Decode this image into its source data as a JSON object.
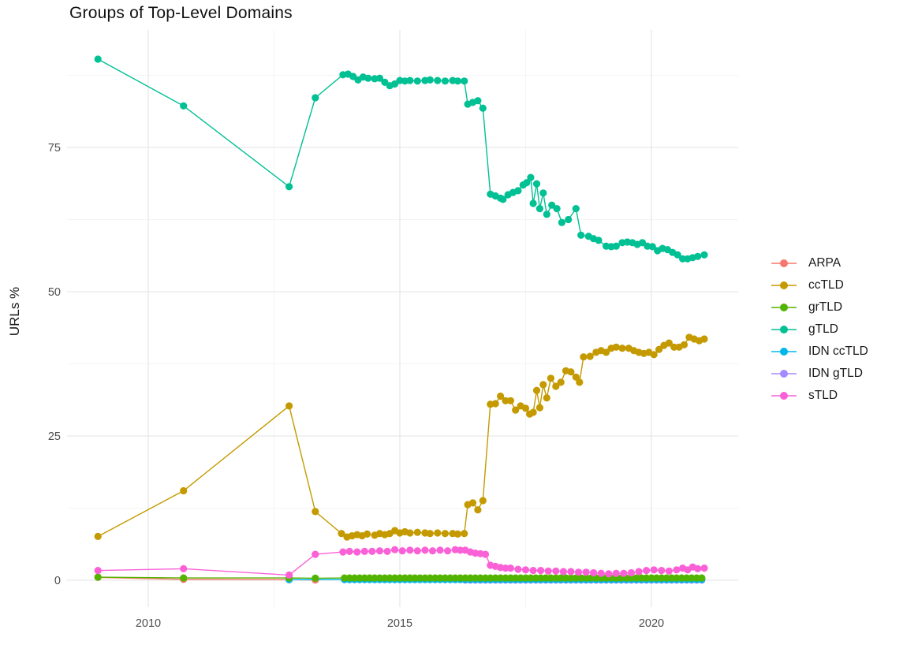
{
  "page": {
    "title": "Groups of Top-Level Domains"
  },
  "axes": {
    "y_label": "URLs %",
    "y_ticks": [
      {
        "label": "0",
        "value": 0
      },
      {
        "label": "25",
        "value": 25
      },
      {
        "label": "50",
        "value": 50
      },
      {
        "label": "75",
        "value": 75
      }
    ],
    "x_ticks": [
      {
        "label": "2010",
        "value": 2010
      },
      {
        "label": "2015",
        "value": 2015
      },
      {
        "label": "2020",
        "value": 2020
      }
    ]
  },
  "legend": {
    "order": [
      "ARPA",
      "ccTLD",
      "grTLD",
      "gTLD",
      "IDN ccTLD",
      "IDN gTLD",
      "sTLD"
    ]
  },
  "colors": {
    "grid_major": "#e3e3e3",
    "grid_minor": "#f1f1f1",
    "tick_text": "#4d4d4d",
    "title_text": "#111111"
  },
  "chart_data": {
    "type": "line",
    "title": "Groups of Top-Level Domains",
    "xlabel": "",
    "ylabel": "URLs %",
    "xlim": [
      2008.4,
      2021.7
    ],
    "ylim": [
      -4.5,
      95
    ],
    "x_major": [
      2010,
      2015,
      2020
    ],
    "x_minor": [
      2012.5,
      2017.5
    ],
    "y_major": [
      0,
      25,
      50,
      75
    ],
    "y_minor": [
      12.5,
      37.5,
      62.5,
      87.5
    ],
    "grid": true,
    "legend_position": "right",
    "marker_radius": 4.6,
    "draw_order": [
      "ARPA",
      "IDN gTLD",
      "IDN ccTLD",
      "ccTLD",
      "gTLD",
      "grTLD",
      "sTLD"
    ],
    "series": [
      {
        "name": "ARPA",
        "color": "#F8766D",
        "points": [
          [
            2009,
            0.5
          ],
          [
            2010.7,
            0.15
          ],
          [
            2012.8,
            0.1
          ],
          [
            2013.32,
            0.05
          ]
        ]
      },
      {
        "name": "ccTLD",
        "color": "#C49A00",
        "points": [
          [
            2009,
            7.6
          ],
          [
            2010.7,
            15.5
          ],
          [
            2012.8,
            30.2
          ],
          [
            2013.32,
            11.9
          ],
          [
            2013.84,
            8.1
          ],
          [
            2013.95,
            7.5
          ],
          [
            2014.05,
            7.7
          ],
          [
            2014.15,
            7.9
          ],
          [
            2014.25,
            7.7
          ],
          [
            2014.35,
            8
          ],
          [
            2014.5,
            7.8
          ],
          [
            2014.6,
            8.1
          ],
          [
            2014.7,
            7.9
          ],
          [
            2014.8,
            8.1
          ],
          [
            2014.9,
            8.6
          ],
          [
            2015,
            8.2
          ],
          [
            2015.1,
            8.4
          ],
          [
            2015.2,
            8.2
          ],
          [
            2015.35,
            8.3
          ],
          [
            2015.5,
            8.2
          ],
          [
            2015.6,
            8.1
          ],
          [
            2015.75,
            8.2
          ],
          [
            2015.9,
            8.1
          ],
          [
            2016.05,
            8.1
          ],
          [
            2016.15,
            8
          ],
          [
            2016.28,
            8.1
          ],
          [
            2016.35,
            13.1
          ],
          [
            2016.45,
            13.4
          ],
          [
            2016.55,
            12.2
          ],
          [
            2016.65,
            13.8
          ],
          [
            2016.8,
            30.5
          ],
          [
            2016.9,
            30.6
          ],
          [
            2017,
            31.9
          ],
          [
            2017.1,
            31.1
          ],
          [
            2017.2,
            31.1
          ],
          [
            2017.3,
            29.5
          ],
          [
            2017.4,
            30.2
          ],
          [
            2017.5,
            29.8
          ],
          [
            2017.58,
            28.8
          ],
          [
            2017.65,
            29.1
          ],
          [
            2017.72,
            32.9
          ],
          [
            2017.78,
            29.9
          ],
          [
            2017.85,
            33.9
          ],
          [
            2017.92,
            31.6
          ],
          [
            2018,
            35
          ],
          [
            2018.1,
            33.6
          ],
          [
            2018.2,
            34.3
          ],
          [
            2018.3,
            36.3
          ],
          [
            2018.4,
            36.1
          ],
          [
            2018.5,
            35.2
          ],
          [
            2018.57,
            34.3
          ],
          [
            2018.65,
            38.7
          ],
          [
            2018.78,
            38.8
          ],
          [
            2018.9,
            39.5
          ],
          [
            2019,
            39.8
          ],
          [
            2019.1,
            39.5
          ],
          [
            2019.2,
            40.2
          ],
          [
            2019.3,
            40.4
          ],
          [
            2019.42,
            40.2
          ],
          [
            2019.55,
            40.2
          ],
          [
            2019.65,
            39.8
          ],
          [
            2019.75,
            39.5
          ],
          [
            2019.85,
            39.3
          ],
          [
            2019.95,
            39.5
          ],
          [
            2020.05,
            39.1
          ],
          [
            2020.15,
            40
          ],
          [
            2020.25,
            40.7
          ],
          [
            2020.35,
            41.1
          ],
          [
            2020.45,
            40.4
          ],
          [
            2020.55,
            40.4
          ],
          [
            2020.65,
            40.8
          ],
          [
            2020.75,
            42.1
          ],
          [
            2020.85,
            41.8
          ],
          [
            2020.95,
            41.5
          ],
          [
            2021.05,
            41.8
          ]
        ]
      },
      {
        "name": "grTLD",
        "color": "#53B400",
        "points": [
          [
            2009,
            0.55
          ],
          [
            2010.7,
            0.4
          ],
          [
            2012.8,
            0.4
          ],
          [
            2013.32,
            0.35
          ]
        ],
        "flat": {
          "start": 2013.9,
          "end": 2021.05,
          "step": 0.1,
          "value": 0.4
        }
      },
      {
        "name": "gTLD",
        "color": "#00C094",
        "points": [
          [
            2009,
            90.3
          ],
          [
            2010.7,
            82.2
          ],
          [
            2012.8,
            68.2
          ],
          [
            2013.32,
            83.6
          ],
          [
            2013.87,
            87.6
          ],
          [
            2013.97,
            87.7
          ],
          [
            2014.07,
            87.3
          ],
          [
            2014.17,
            86.7
          ],
          [
            2014.27,
            87.2
          ],
          [
            2014.37,
            87
          ],
          [
            2014.5,
            86.9
          ],
          [
            2014.6,
            87
          ],
          [
            2014.7,
            86.3
          ],
          [
            2014.8,
            85.7
          ],
          [
            2014.9,
            86
          ],
          [
            2015,
            86.6
          ],
          [
            2015.1,
            86.5
          ],
          [
            2015.2,
            86.6
          ],
          [
            2015.35,
            86.5
          ],
          [
            2015.5,
            86.6
          ],
          [
            2015.6,
            86.7
          ],
          [
            2015.75,
            86.6
          ],
          [
            2015.9,
            86.5
          ],
          [
            2016.05,
            86.6
          ],
          [
            2016.15,
            86.5
          ],
          [
            2016.28,
            86.5
          ],
          [
            2016.35,
            82.5
          ],
          [
            2016.45,
            82.8
          ],
          [
            2016.55,
            83.1
          ],
          [
            2016.65,
            81.8
          ],
          [
            2016.8,
            66.9
          ],
          [
            2016.9,
            66.6
          ],
          [
            2017,
            66.2
          ],
          [
            2017.05,
            66
          ],
          [
            2017.15,
            66.8
          ],
          [
            2017.25,
            67.2
          ],
          [
            2017.35,
            67.5
          ],
          [
            2017.45,
            68.5
          ],
          [
            2017.52,
            68.9
          ],
          [
            2017.6,
            69.8
          ],
          [
            2017.65,
            65.3
          ],
          [
            2017.72,
            68.7
          ],
          [
            2017.78,
            64.4
          ],
          [
            2017.85,
            67.1
          ],
          [
            2017.92,
            63.4
          ],
          [
            2018.02,
            65
          ],
          [
            2018.12,
            64.4
          ],
          [
            2018.22,
            62
          ],
          [
            2018.35,
            62.5
          ],
          [
            2018.5,
            64.4
          ],
          [
            2018.6,
            59.8
          ],
          [
            2018.75,
            59.6
          ],
          [
            2018.85,
            59.2
          ],
          [
            2018.95,
            58.9
          ],
          [
            2019.1,
            57.9
          ],
          [
            2019.2,
            57.8
          ],
          [
            2019.3,
            57.9
          ],
          [
            2019.42,
            58.5
          ],
          [
            2019.52,
            58.6
          ],
          [
            2019.62,
            58.5
          ],
          [
            2019.72,
            58.2
          ],
          [
            2019.82,
            58.5
          ],
          [
            2019.92,
            57.9
          ],
          [
            2020.02,
            57.8
          ],
          [
            2020.12,
            57.1
          ],
          [
            2020.22,
            57.5
          ],
          [
            2020.32,
            57.3
          ],
          [
            2020.42,
            56.8
          ],
          [
            2020.52,
            56.4
          ],
          [
            2020.62,
            55.7
          ],
          [
            2020.72,
            55.7
          ],
          [
            2020.82,
            55.9
          ],
          [
            2020.92,
            56.1
          ],
          [
            2021.05,
            56.4
          ]
        ]
      },
      {
        "name": "IDN ccTLD",
        "color": "#00B6EB",
        "points": [
          [
            2012.8,
            0.1
          ]
        ],
        "flat": {
          "start": 2013.9,
          "end": 2021.05,
          "step": 0.1,
          "value": 0.12
        }
      },
      {
        "name": "IDN gTLD",
        "color": "#A58AFF",
        "points": [],
        "flat": {
          "start": 2016.3,
          "end": 2021.05,
          "step": 0.1,
          "value": 0.03
        }
      },
      {
        "name": "sTLD",
        "color": "#FB61D7",
        "points": [
          [
            2009,
            1.7
          ],
          [
            2010.7,
            2
          ],
          [
            2012.8,
            0.9
          ],
          [
            2013.32,
            4.5
          ],
          [
            2013.87,
            4.9
          ],
          [
            2014,
            5
          ],
          [
            2014.15,
            4.9
          ],
          [
            2014.3,
            5
          ],
          [
            2014.45,
            5
          ],
          [
            2014.6,
            5.1
          ],
          [
            2014.75,
            5
          ],
          [
            2014.9,
            5.3
          ],
          [
            2015.05,
            5.1
          ],
          [
            2015.2,
            5.2
          ],
          [
            2015.35,
            5.1
          ],
          [
            2015.5,
            5.2
          ],
          [
            2015.65,
            5.1
          ],
          [
            2015.8,
            5.2
          ],
          [
            2015.95,
            5.1
          ],
          [
            2016.1,
            5.3
          ],
          [
            2016.2,
            5.2
          ],
          [
            2016.3,
            5.2
          ],
          [
            2016.4,
            4.9
          ],
          [
            2016.5,
            4.7
          ],
          [
            2016.6,
            4.6
          ],
          [
            2016.7,
            4.5
          ],
          [
            2016.8,
            2.6
          ],
          [
            2016.9,
            2.4
          ],
          [
            2017,
            2.2
          ],
          [
            2017.1,
            2.1
          ],
          [
            2017.2,
            2.1
          ],
          [
            2017.35,
            1.9
          ],
          [
            2017.5,
            1.8
          ],
          [
            2017.65,
            1.7
          ],
          [
            2017.8,
            1.7
          ],
          [
            2017.95,
            1.6
          ],
          [
            2018.1,
            1.6
          ],
          [
            2018.25,
            1.5
          ],
          [
            2018.4,
            1.5
          ],
          [
            2018.55,
            1.4
          ],
          [
            2018.7,
            1.4
          ],
          [
            2018.85,
            1.3
          ],
          [
            2019,
            1.2
          ],
          [
            2019.15,
            1.1
          ],
          [
            2019.3,
            1.2
          ],
          [
            2019.45,
            1.2
          ],
          [
            2019.6,
            1.3
          ],
          [
            2019.75,
            1.5
          ],
          [
            2019.9,
            1.7
          ],
          [
            2020.05,
            1.8
          ],
          [
            2020.2,
            1.7
          ],
          [
            2020.35,
            1.6
          ],
          [
            2020.5,
            1.8
          ],
          [
            2020.62,
            2.1
          ],
          [
            2020.72,
            1.8
          ],
          [
            2020.82,
            2.3
          ],
          [
            2020.92,
            2
          ],
          [
            2021.05,
            2.1
          ]
        ]
      }
    ]
  }
}
